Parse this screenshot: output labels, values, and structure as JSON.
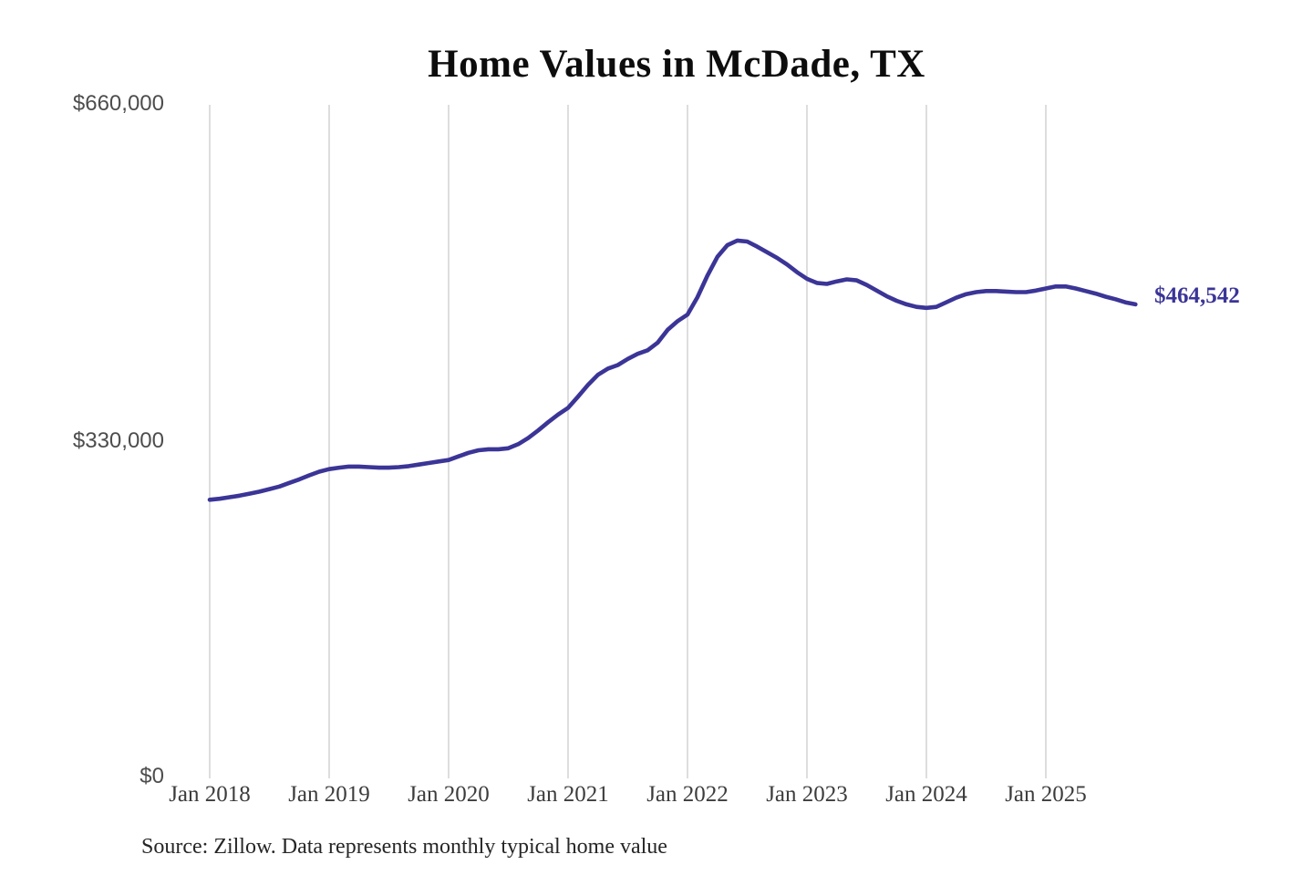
{
  "page": {
    "background": "#ffffff"
  },
  "chart": {
    "title": "Home Values in McDade, TX",
    "end_label": "$464,542",
    "source": "Source: Zillow. Data represents monthly typical home value"
  },
  "chart_data": {
    "type": "line",
    "title": "Home Values in McDade, TX",
    "unit": "USD",
    "grid": "vertical-yearly",
    "legend": "none",
    "line_color": "#3b3597",
    "gridline_color": "#cbcbcb",
    "ylim": [
      0,
      660000
    ],
    "y_ticks": [
      660000,
      330000,
      0
    ],
    "y_tick_labels": [
      "$660,000",
      "$330,000",
      "$0"
    ],
    "x_tick_labels": [
      "Jan 2018",
      "Jan 2019",
      "Jan 2020",
      "Jan 2021",
      "Jan 2022",
      "Jan 2023",
      "Jan 2024",
      "Jan 2025"
    ],
    "x_start_month": "2018-01",
    "x_end_month": "2025-10",
    "end_value": 464542,
    "end_label": "$464,542",
    "source": "Source: Zillow. Data represents monthly typical home value",
    "series": [
      {
        "name": "Monthly typical home value",
        "color": "#3b3597",
        "values_monthly_from_2018_01": [
          273000,
          274000,
          275500,
          277000,
          279000,
          281000,
          283500,
          286000,
          289500,
          293000,
          297000,
          300500,
          303000,
          304500,
          305500,
          305500,
          305000,
          304500,
          304500,
          305000,
          306000,
          307500,
          309000,
          310500,
          312000,
          315500,
          319000,
          321500,
          322500,
          322500,
          323500,
          327500,
          333500,
          341000,
          349000,
          356500,
          363000,
          374000,
          385500,
          395500,
          401500,
          405000,
          411000,
          416000,
          419500,
          427000,
          439500,
          448000,
          454500,
          471500,
          492500,
          511000,
          522500,
          527000,
          526000,
          521000,
          515500,
          510000,
          503500,
          496000,
          489500,
          485500,
          484500,
          487000,
          489000,
          488000,
          483500,
          478000,
          472500,
          468000,
          464500,
          462000,
          461000,
          462000,
          466500,
          471000,
          474500,
          476500,
          477500,
          477500,
          477000,
          476500,
          476500,
          478000,
          480000,
          482000,
          482000,
          480000,
          477500,
          475000,
          472000,
          469500,
          466500,
          464542
        ]
      }
    ]
  }
}
